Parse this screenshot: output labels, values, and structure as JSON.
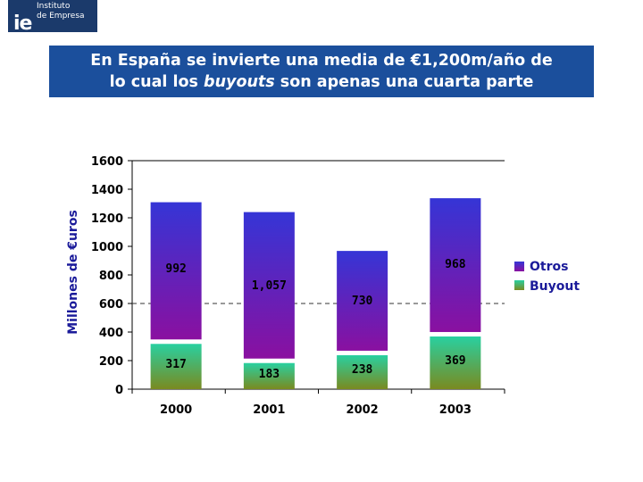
{
  "header": {
    "logo_mark": "ie",
    "logo_line1": "Instituto",
    "logo_line2": "de Empresa",
    "title_line1": "En España se invierte una media de €1,200m/año de",
    "title_line2_pre": "lo cual los ",
    "title_line2_em": "buyouts",
    "title_line2_post": " son apenas una cuarta parte"
  },
  "colors": {
    "otros_top": "#3535d6",
    "otros_bottom": "#8a10a0",
    "buyout_top": "#29d0a0",
    "buyout_bottom": "#7a8a20",
    "reference_line": "#333333"
  },
  "chart_data": {
    "type": "bar",
    "stacked": true,
    "categories": [
      "2000",
      "2001",
      "2002",
      "2003"
    ],
    "series": [
      {
        "name": "Buyout",
        "values": [
          317,
          183,
          238,
          369
        ],
        "labels": [
          "317",
          "183",
          "238",
          "369"
        ]
      },
      {
        "name": "Otros",
        "values": [
          992,
          1057,
          730,
          968
        ],
        "labels": [
          "992",
          "1,057",
          "730",
          "968"
        ]
      }
    ],
    "ylabel": "Millones de €uros",
    "ylim": [
      0,
      1600
    ],
    "yticks": [
      0,
      200,
      400,
      600,
      800,
      1000,
      1200,
      1400,
      1600
    ],
    "reference_line": 600,
    "legend_position": "right"
  }
}
